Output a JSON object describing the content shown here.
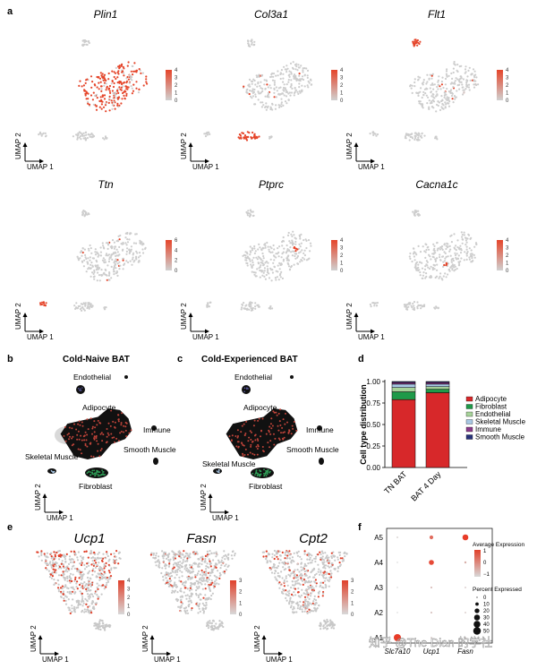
{
  "panel_letters": {
    "a": "a",
    "b": "b",
    "c": "c",
    "d": "d",
    "e": "e",
    "f": "f"
  },
  "umap_axes": {
    "x": "UMAP 1",
    "y": "UMAP 2"
  },
  "panel_a": {
    "genes": [
      "Plin1",
      "Col3a1",
      "Flt1",
      "Ttn",
      "Ptprc",
      "Cacna1c"
    ],
    "colorbar_ticks": [
      [
        "4",
        "3",
        "2",
        "1",
        "0"
      ],
      [
        "4",
        "3",
        "2",
        "1",
        "0"
      ],
      [
        "4",
        "3",
        "2",
        "1",
        "0"
      ],
      [
        "6",
        "4",
        "2",
        "0"
      ],
      [
        "4",
        "3",
        "2",
        "1",
        "0"
      ],
      [
        "4",
        "3",
        "2",
        "1",
        "0"
      ]
    ],
    "colors": {
      "low": "#cfcfcf",
      "high": "#e5452a"
    }
  },
  "panel_b": {
    "title": "Cold-Naive BAT",
    "labels": {
      "endothelial": "Endothelial",
      "adipocyte": "Adipocyte",
      "immune": "Immune",
      "smooth": "Smooth Muscle",
      "skeletal": "Skeletal Muscle",
      "fibroblast": "Fibroblast"
    }
  },
  "panel_c": {
    "title": "Cold-Experienced BAT",
    "labels": {
      "endothelial": "Endothelial",
      "adipocyte": "Adipocyte",
      "immune": "Immune",
      "smooth": "Smooth Muscle",
      "skeletal": "Skeletal Muscle",
      "fibroblast": "Fibroblast"
    }
  },
  "chart_data": [
    {
      "type": "bar",
      "stacked": true,
      "title": "",
      "ylabel": "Cell type distribution",
      "ylim": [
        0,
        1
      ],
      "yticks": [
        "0.00",
        "0.25",
        "0.50",
        "0.75",
        "1.00"
      ],
      "categories": [
        "TN BAT",
        "BAT 4 Day"
      ],
      "series": [
        {
          "name": "Adipocyte",
          "color": "#d7282a",
          "values": [
            0.79,
            0.87
          ]
        },
        {
          "name": "Fibroblast",
          "color": "#1f9a49",
          "values": [
            0.09,
            0.04
          ]
        },
        {
          "name": "Endothelial",
          "color": "#a7d39a",
          "values": [
            0.05,
            0.03
          ]
        },
        {
          "name": "Skeletal Muscle",
          "color": "#a8c8e4",
          "values": [
            0.04,
            0.03
          ]
        },
        {
          "name": "Immune",
          "color": "#8a3b8a",
          "values": [
            0.02,
            0.02
          ]
        },
        {
          "name": "Smooth Muscle",
          "color": "#28337a",
          "values": [
            0.01,
            0.01
          ]
        }
      ]
    },
    {
      "type": "scatter",
      "title": "",
      "xcategories": [
        "Slc7a10",
        "Ucp1",
        "Fasn"
      ],
      "ycategories": [
        "A1",
        "A2",
        "A3",
        "A4",
        "A5"
      ],
      "points": [
        {
          "x": "Slc7a10",
          "y": "A1",
          "size": 45,
          "expr": 1.2
        },
        {
          "x": "Ucp1",
          "y": "A1",
          "size": 2,
          "expr": -0.8
        },
        {
          "x": "Fasn",
          "y": "A1",
          "size": 2,
          "expr": -0.8
        },
        {
          "x": "Slc7a10",
          "y": "A2",
          "size": 0,
          "expr": -1
        },
        {
          "x": "Ucp1",
          "y": "A2",
          "size": 3,
          "expr": -0.7
        },
        {
          "x": "Fasn",
          "y": "A2",
          "size": 2,
          "expr": -0.8
        },
        {
          "x": "Slc7a10",
          "y": "A3",
          "size": 0,
          "expr": -1
        },
        {
          "x": "Ucp1",
          "y": "A3",
          "size": 3,
          "expr": -0.6
        },
        {
          "x": "Fasn",
          "y": "A3",
          "size": 2,
          "expr": -0.8
        },
        {
          "x": "Slc7a10",
          "y": "A4",
          "size": 0,
          "expr": -1
        },
        {
          "x": "Ucp1",
          "y": "A4",
          "size": 22,
          "expr": 1.0
        },
        {
          "x": "Fasn",
          "y": "A4",
          "size": 4,
          "expr": -0.5
        },
        {
          "x": "Slc7a10",
          "y": "A5",
          "size": 2,
          "expr": -0.9
        },
        {
          "x": "Ucp1",
          "y": "A5",
          "size": 12,
          "expr": 0.5
        },
        {
          "x": "Fasn",
          "y": "A5",
          "size": 30,
          "expr": 1.2
        }
      ],
      "legend_expr_title": "Average Expression",
      "legend_expr_ticks": [
        "1",
        "0",
        "−1"
      ],
      "legend_size_title": "Percent Expressed",
      "legend_size_ticks": [
        "0",
        "10",
        "20",
        "30",
        "40",
        "50"
      ]
    }
  ],
  "panel_e": {
    "genes": [
      "Ucp1",
      "Fasn",
      "Cpt2"
    ],
    "colorbar_ticks": [
      [
        "4",
        "3",
        "2",
        "1",
        "0"
      ],
      [
        "3",
        "2",
        "1",
        "0"
      ],
      [
        "3",
        "2",
        "1",
        "0"
      ]
    ]
  },
  "watermark": "知乎 @The Dian 的学社"
}
